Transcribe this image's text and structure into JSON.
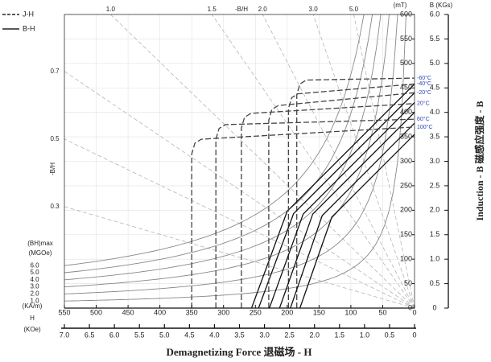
{
  "chart_data": {
    "type": "demagnetization",
    "title": "Demagnetizing Force 退磁场 - H",
    "legend": [
      "J-H",
      "B-H"
    ],
    "xunit": "(KA/m)",
    "xname": "H",
    "x2unit": "(KOe)",
    "xlim": [
      550,
      0
    ],
    "xticks": [
      550,
      500,
      450,
      400,
      350,
      300,
      250,
      200,
      150,
      100,
      50,
      0
    ],
    "x2lim": [
      7,
      0
    ],
    "x2ticks": [
      {
        "value": 7,
        "label": "7.0"
      },
      6.5,
      {
        "value": 6,
        "label": "6.0"
      },
      5.5,
      {
        "value": 5,
        "label": "5.0"
      },
      4.5,
      {
        "value": 4,
        "label": "4.0"
      },
      3.5,
      {
        "value": 3,
        "label": "3.0"
      },
      2.5,
      {
        "value": 2,
        "label": "2.0"
      },
      1.5,
      {
        "value": 1,
        "label": "1.0"
      },
      0.5,
      0
    ],
    "ylim": [
      0,
      600
    ],
    "yticks": [
      0,
      50,
      100,
      150,
      200,
      250,
      300,
      350,
      400,
      450,
      500,
      550,
      600
    ],
    "yunit": "(mT)",
    "y2lim": [
      0,
      6
    ],
    "y2ticks": [
      0,
      0.5,
      {
        "value": 1,
        "label": "1.0"
      },
      1.5,
      {
        "value": 2,
        "label": "2.0"
      },
      2.5,
      {
        "value": 3,
        "label": "3.0"
      },
      3.5,
      {
        "value": 4,
        "label": "4.0"
      },
      4.5,
      {
        "value": 5,
        "label": "5.0"
      },
      5.5,
      {
        "value": 6,
        "label": "6.0"
      }
    ],
    "y2unit": "B (KGs)",
    "ylabel": "Induction - B 磁感应强度 - B",
    "grid": true,
    "permeance_label": "-B/H",
    "permeance": [
      0.3,
      0.5,
      0.7,
      {
        "value": 1,
        "label": "1.0"
      },
      1.5,
      {
        "value": 2,
        "label": "2.0"
      },
      {
        "value": 3,
        "label": "3.0"
      },
      {
        "value": 5,
        "label": "5.0"
      }
    ],
    "bhmax_label": "(BH)max",
    "bhmax_unit": "(MGOe)",
    "bhmax": [
      {
        "value": 1,
        "label": "1.0"
      },
      {
        "value": 2,
        "label": "2.0"
      },
      {
        "value": 3,
        "label": "3.0"
      },
      {
        "value": 4,
        "label": "4.0"
      },
      {
        "value": 5,
        "label": "5.0"
      },
      {
        "value": 6,
        "label": "6.0"
      }
    ],
    "label_color": "#2b46b5",
    "curves": [
      {
        "name": "-60°C",
        "jh": {
          "x": [
            185,
            185,
            180,
            170,
            0
          ],
          "y": [
            0,
            436,
            458,
            466,
            470
          ]
        },
        "bh": {
          "x": [
            0,
            200,
            256
          ],
          "y": [
            458,
            198,
            0
          ]
        }
      },
      {
        "name": "-40°C",
        "jh": {
          "x": [
            198,
            198,
            193,
            183,
            0
          ],
          "y": [
            0,
            408,
            430,
            438,
            458
          ]
        },
        "bh": {
          "x": [
            0,
            190,
            245
          ],
          "y": [
            440,
            193,
            0
          ]
        }
      },
      {
        "name": "-20°C",
        "jh": {
          "x": [
            229,
            229,
            224,
            214,
            0
          ],
          "y": [
            0,
            384,
            406,
            414,
            440
          ]
        },
        "bh": {
          "x": [
            0,
            175,
            228
          ],
          "y": [
            420,
            192,
            0
          ]
        }
      },
      {
        "name": "20°C",
        "jh": {
          "x": [
            272,
            272,
            267,
            257,
            0
          ],
          "y": [
            0,
            368,
            390,
            398,
            418
          ]
        },
        "bh": {
          "x": [
            0,
            160,
            212
          ],
          "y": [
            400,
            192,
            0
          ]
        }
      },
      {
        "name": "60°C",
        "jh": {
          "x": [
            312,
            312,
            307,
            297,
            0
          ],
          "y": [
            0,
            345,
            367,
            375,
            386
          ]
        },
        "bh": {
          "x": [
            0,
            145,
            195
          ],
          "y": [
            378,
            189,
            0
          ]
        }
      },
      {
        "name": "100°C",
        "jh": {
          "x": [
            350,
            350,
            345,
            335,
            0
          ],
          "y": [
            0,
            315,
            337,
            345,
            370
          ]
        },
        "bh": {
          "x": [
            0,
            130,
            180
          ],
          "y": [
            355,
            186,
            0
          ]
        }
      }
    ]
  }
}
